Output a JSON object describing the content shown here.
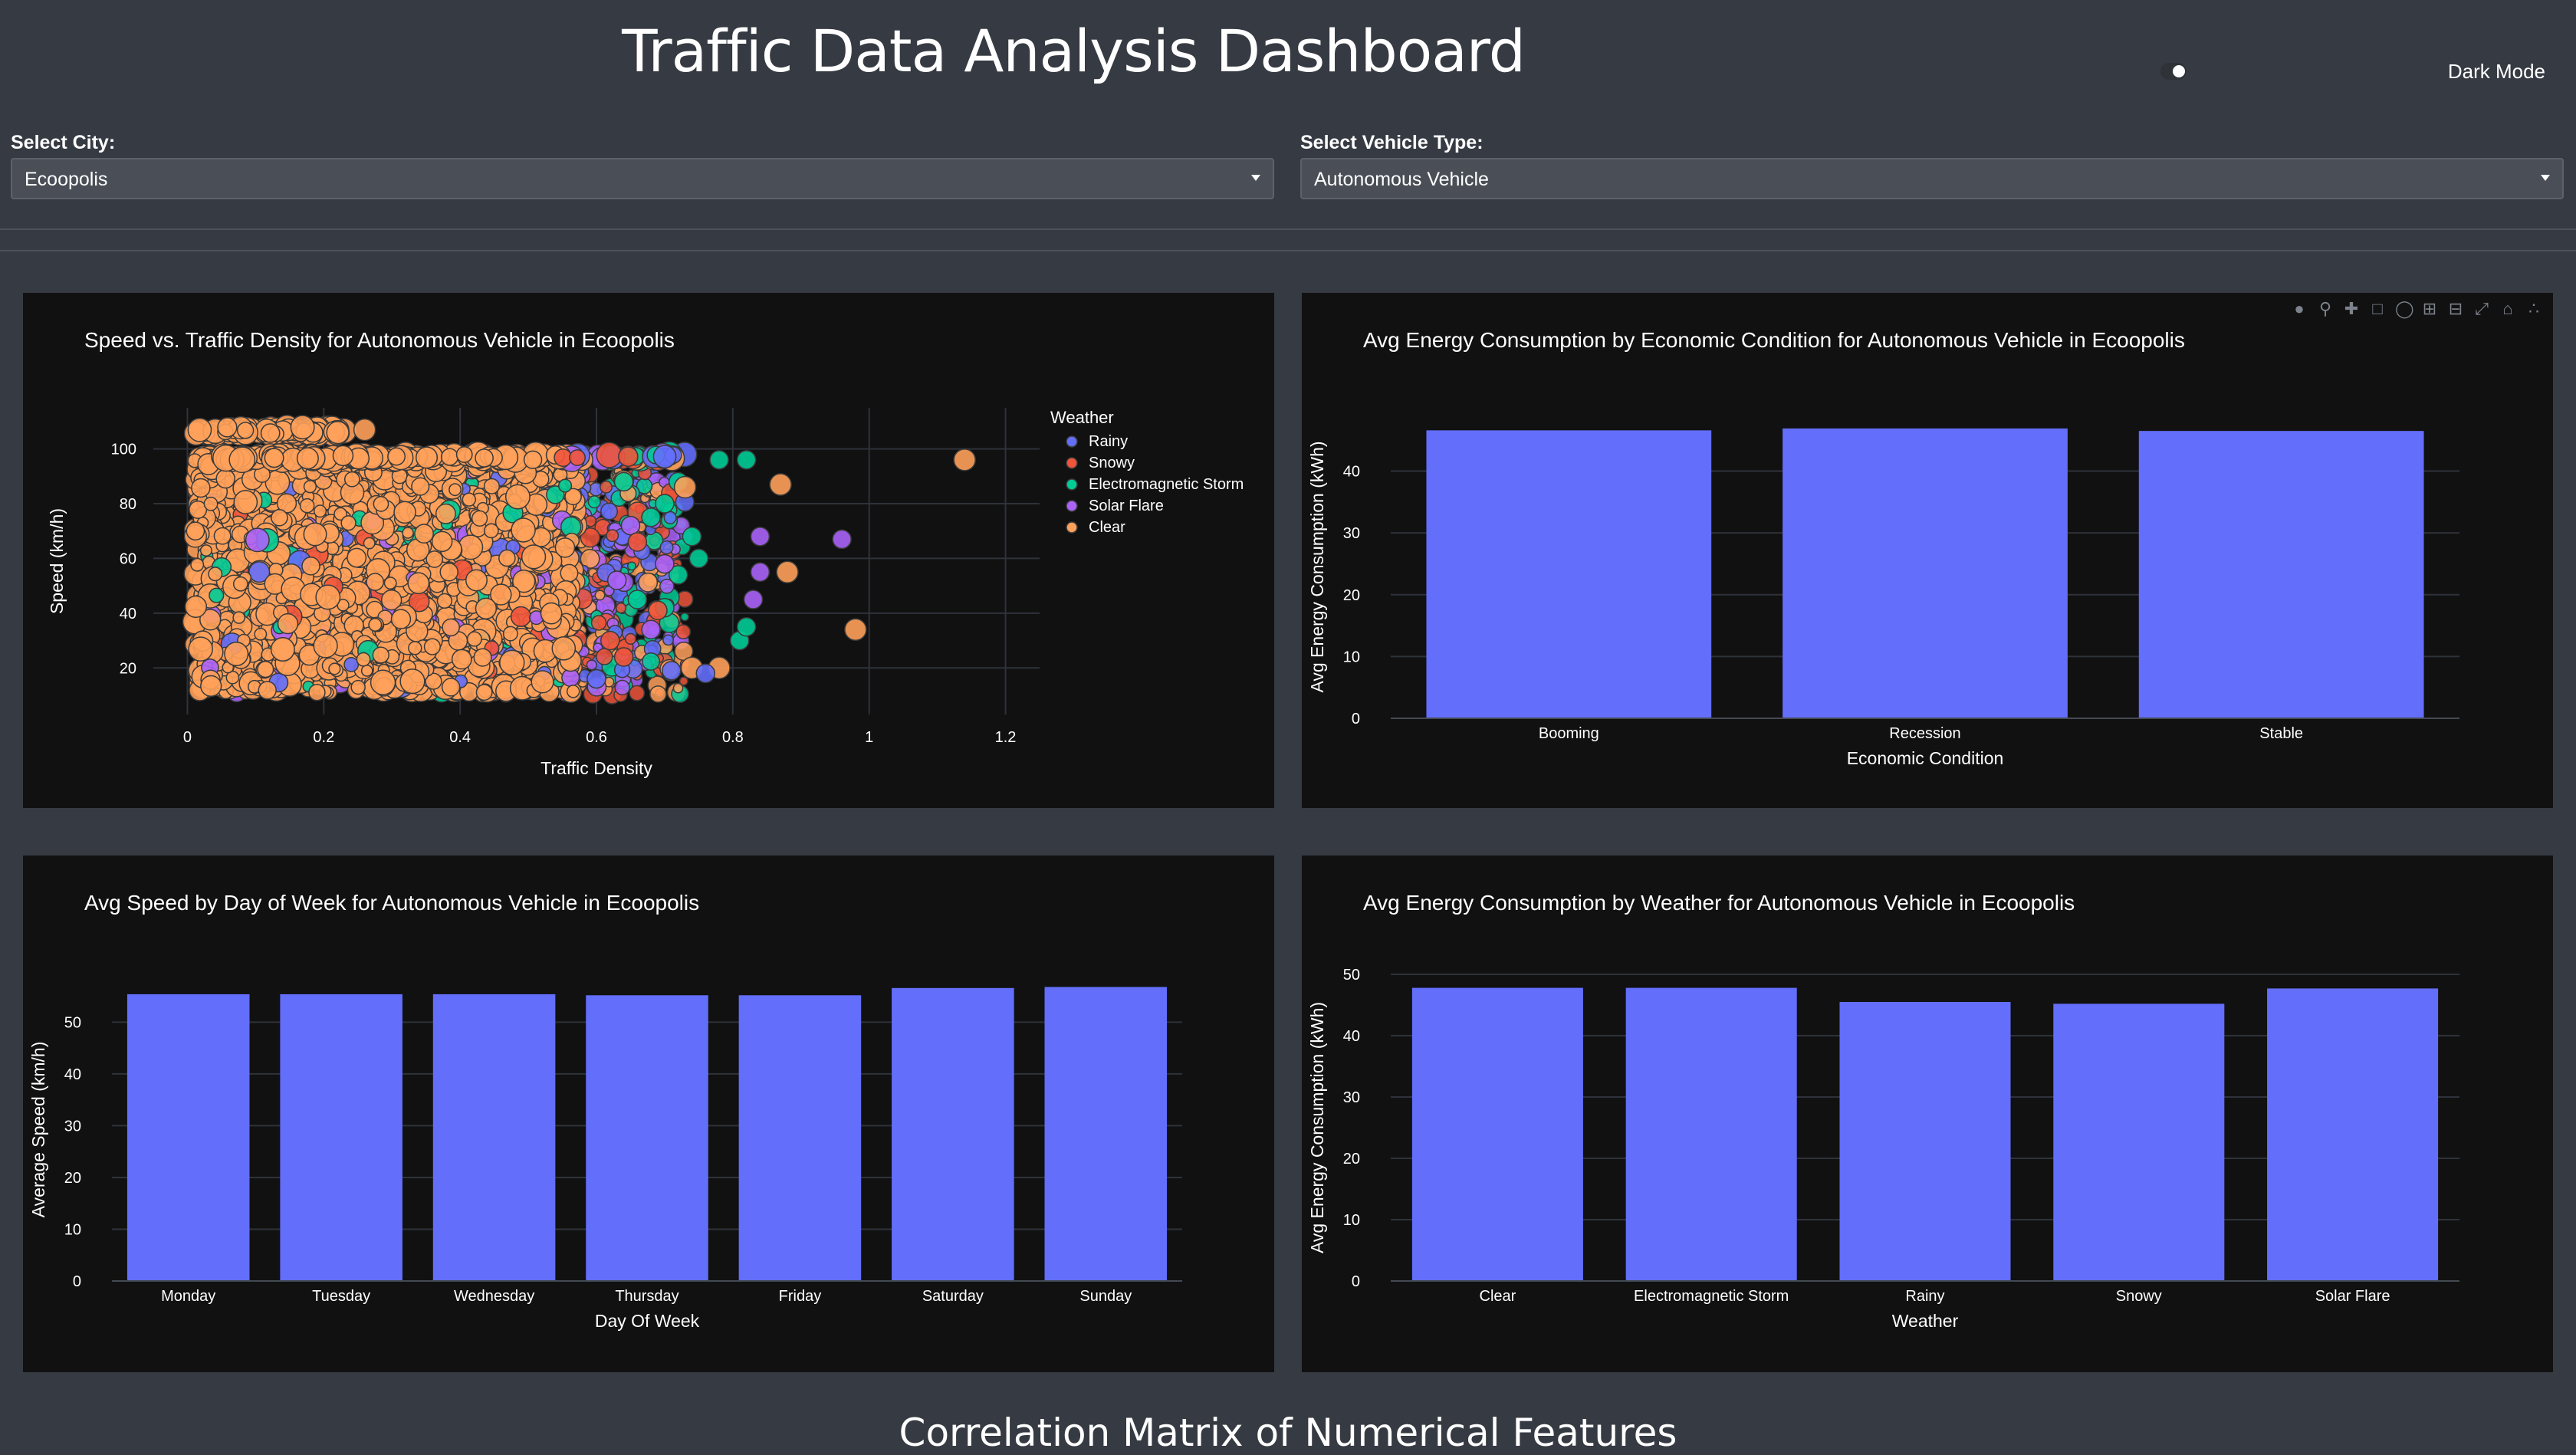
{
  "page": {
    "title": "Traffic Data Analysis Dashboard",
    "bottom_title": "Correlation Matrix of Numerical Features"
  },
  "dark_mode": {
    "label": "Dark Mode",
    "on": true
  },
  "controls": {
    "city": {
      "label": "Select City:",
      "value": "Ecoopolis"
    },
    "vehicle": {
      "label": "Select Vehicle Type:",
      "value": "Autonomous Vehicle"
    }
  },
  "modebar_icons": [
    "camera-icon",
    "zoom-icon",
    "pan-icon",
    "box-select-icon",
    "lasso-icon",
    "zoom-in-icon",
    "zoom-out-icon",
    "autoscale-icon",
    "home-icon",
    "plotly-logo-icon"
  ],
  "chart_data": [
    {
      "type": "scatter",
      "title": "Speed vs. Traffic Density for Autonomous Vehicle in Ecoopolis",
      "xlabel": "Traffic Density",
      "ylabel": "Speed (km/h)",
      "xlim": [
        -0.05,
        1.25
      ],
      "ylim": [
        3,
        115
      ],
      "xticks": [
        0,
        0.2,
        0.4,
        0.6,
        0.8,
        1,
        1.2
      ],
      "xtick_labels": [
        "0",
        "0.2",
        "0.4",
        "0.6",
        "0.8",
        "1",
        "1.2"
      ],
      "yticks": [
        20,
        40,
        60,
        80,
        100
      ],
      "legend": {
        "title": "Weather",
        "placement": "top-right"
      },
      "series": [
        {
          "name": "Rainy",
          "color": "#636efa"
        },
        {
          "name": "Snowy",
          "color": "#ef553b"
        },
        {
          "name": "Electromagnetic Storm",
          "color": "#00cc96"
        },
        {
          "name": "Solar Flare",
          "color": "#ab63fa"
        },
        {
          "name": "Clear",
          "color": "#ffa15a"
        }
      ],
      "points": [
        {
          "s": 2,
          "x": 0.82,
          "y": 96
        },
        {
          "s": 2,
          "x": 0.78,
          "y": 96
        },
        {
          "s": 2,
          "x": 0.72,
          "y": 88
        },
        {
          "s": 2,
          "x": 0.7,
          "y": 80
        },
        {
          "s": 2,
          "x": 0.68,
          "y": 75
        },
        {
          "s": 2,
          "x": 0.74,
          "y": 68
        },
        {
          "s": 2,
          "x": 0.75,
          "y": 60
        },
        {
          "s": 2,
          "x": 0.72,
          "y": 54
        },
        {
          "s": 2,
          "x": 0.7,
          "y": 42
        },
        {
          "s": 2,
          "x": 0.81,
          "y": 30
        },
        {
          "s": 2,
          "x": 0.82,
          "y": 35
        },
        {
          "s": 2,
          "x": 0.66,
          "y": 45
        },
        {
          "s": 2,
          "x": 0.64,
          "y": 88
        },
        {
          "s": 3,
          "x": 0.84,
          "y": 68
        },
        {
          "s": 3,
          "x": 0.96,
          "y": 67
        },
        {
          "s": 3,
          "x": 0.84,
          "y": 55
        },
        {
          "s": 3,
          "x": 0.83,
          "y": 45
        },
        {
          "s": 3,
          "x": 0.7,
          "y": 58
        },
        {
          "s": 3,
          "x": 0.65,
          "y": 72
        },
        {
          "s": 3,
          "x": 0.68,
          "y": 34
        },
        {
          "s": 3,
          "x": 0.63,
          "y": 52
        },
        {
          "s": 4,
          "x": 0.87,
          "y": 87
        },
        {
          "s": 4,
          "x": 1.14,
          "y": 96
        },
        {
          "s": 4,
          "x": 0.88,
          "y": 55
        },
        {
          "s": 4,
          "x": 0.98,
          "y": 34
        },
        {
          "s": 4,
          "x": 0.73,
          "y": 86
        },
        {
          "s": 4,
          "x": 0.26,
          "y": 107
        },
        {
          "s": 4,
          "x": 0.74,
          "y": 20
        },
        {
          "s": 4,
          "x": 0.78,
          "y": 20
        },
        {
          "s": 1,
          "x": 0.66,
          "y": 66
        },
        {
          "s": 1,
          "x": 0.69,
          "y": 41
        },
        {
          "s": 1,
          "x": 0.62,
          "y": 30
        },
        {
          "s": 1,
          "x": 0.64,
          "y": 24
        },
        {
          "s": 0,
          "x": 0.71,
          "y": 19
        },
        {
          "s": 0,
          "x": 0.76,
          "y": 18
        },
        {
          "s": 0,
          "x": 0.6,
          "y": 16
        }
      ]
    },
    {
      "type": "bar",
      "title": "Avg Energy Consumption by Economic Condition for Autonomous Vehicle in Ecoopolis",
      "xlabel": "Economic Condition",
      "ylabel": "Avg Energy Consumption (kWh)",
      "categories": [
        "Booming",
        "Recession",
        "Stable"
      ],
      "values": [
        46.6,
        46.9,
        46.5
      ],
      "ylim": [
        0,
        49
      ],
      "yticks": [
        0,
        10,
        20,
        30,
        40
      ],
      "color": "#636efa"
    },
    {
      "type": "bar",
      "title": "Avg Speed by Day of Week for Autonomous Vehicle in Ecoopolis",
      "xlabel": "Day Of Week",
      "ylabel": "Average Speed (km/h)",
      "categories": [
        "Monday",
        "Tuesday",
        "Wednesday",
        "Thursday",
        "Friday",
        "Saturday",
        "Sunday"
      ],
      "values": [
        55.4,
        55.4,
        55.4,
        55.2,
        55.2,
        56.6,
        56.8
      ],
      "ylim": [
        0,
        58.5
      ],
      "yticks": [
        0,
        10,
        20,
        30,
        40,
        50
      ],
      "color": "#636efa"
    },
    {
      "type": "bar",
      "title": "Avg Energy Consumption by Weather for Autonomous Vehicle in Ecoopolis",
      "xlabel": "Weather",
      "ylabel": "Avg Energy Consumption (kWh)",
      "categories": [
        "Clear",
        "Electromagnetic Storm",
        "Rainy",
        "Snowy",
        "Solar Flare"
      ],
      "values": [
        47.8,
        47.8,
        45.5,
        45.2,
        47.7
      ],
      "ylim": [
        0,
        50
      ],
      "yticks": [
        0,
        10,
        20,
        30,
        40,
        50
      ],
      "color": "#636efa"
    }
  ]
}
